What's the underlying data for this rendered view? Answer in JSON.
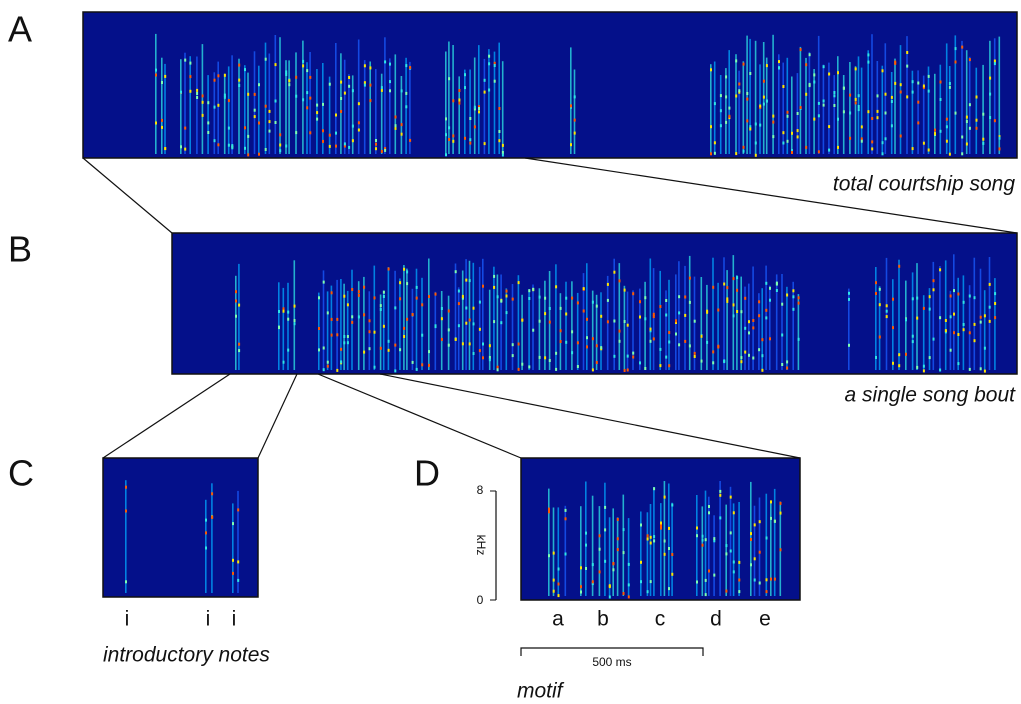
{
  "panels": [
    {
      "letter": "A",
      "caption": "total courtship song"
    },
    {
      "letter": "B",
      "caption": "a single song bout"
    },
    {
      "letter": "C",
      "caption": "introductory notes",
      "note_labels": [
        "i",
        "i",
        "i"
      ]
    },
    {
      "letter": "D",
      "caption": "motif",
      "axis_label": "kHz",
      "axis_ticks": [
        "8",
        "0"
      ],
      "syllables": [
        "a",
        "b",
        "c",
        "d",
        "e"
      ],
      "scale_bar": "500 ms"
    }
  ]
}
